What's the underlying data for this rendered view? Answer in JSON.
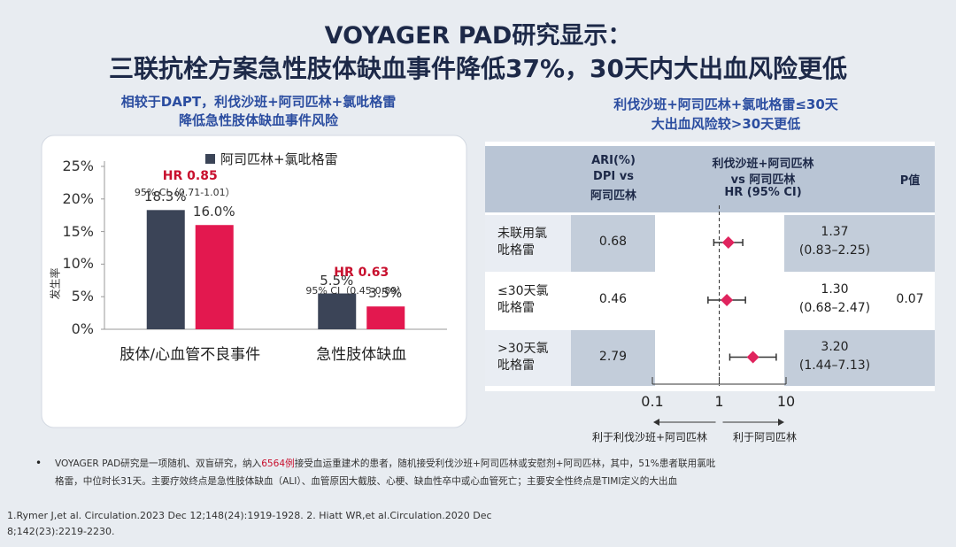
{
  "header": {
    "title_lines": [
      "VOYAGER PAD研究显示：",
      "三联抗栓方案急性肢体缺血事件降低37%，30天内大出血风险更低"
    ]
  },
  "left_subtitle": [
    "相较于DAPT，利伐沙班+阿司匹林+氯吡格雷",
    "降低急性肢体缺血事件风险"
  ],
  "right_subtitle": [
    "利伐沙班+阿司匹林+氯吡格雷≤30天",
    "大出血风险较>30天更低"
  ],
  "chart_data": [
    {
      "type": "bar",
      "ylabel": "发生率",
      "categories": [
        "肢体/心血管不良事件",
        "急性肢体缺血"
      ],
      "series": [
        {
          "name": "阿司匹林+氯吡格雷",
          "color": "#3b4457",
          "values": [
            18.3,
            5.5
          ],
          "value_labels": [
            "18.3%",
            "5.5%"
          ]
        },
        {
          "color": "#e3184f",
          "values": [
            16.0,
            3.5
          ],
          "value_labels": [
            "16.0%",
            "3.5%"
          ]
        }
      ],
      "annotations": [
        {
          "hr": "HR 0.85",
          "ci": "95% CI（0.71-1.01）"
        },
        {
          "hr": "HR 0.63",
          "ci": "95% CI（0.45-0.89）"
        }
      ],
      "ylim": [
        0,
        25
      ],
      "yticks": [
        {
          "value": 0,
          "label": "0%"
        },
        {
          "value": 5,
          "label": "5%"
        },
        {
          "value": 10,
          "label": "10%"
        },
        {
          "value": 15,
          "label": "15%"
        },
        {
          "value": 20,
          "label": "20%"
        },
        {
          "value": 25,
          "label": "25%"
        }
      ]
    },
    {
      "type": "forest",
      "column_headers": [
        [
          "ARI(%)",
          "DPI vs",
          "阿司匹林"
        ],
        [
          "利伐沙班+阿司匹林",
          "vs 阿司匹林",
          "HR (95% CI)"
        ],
        [
          "P值"
        ]
      ],
      "categories": [
        "未联用氯吡格雷",
        "≤30天氯吡格雷",
        ">30天氯吡格雷"
      ],
      "ari": [
        0.68,
        0.46,
        2.79
      ],
      "values": [
        1.37,
        1.3,
        3.2
      ],
      "value_labels": [
        "1.37",
        "1.30",
        "3.20"
      ],
      "ci_low": [
        0.83,
        0.68,
        1.44
      ],
      "ci_high": [
        2.25,
        2.47,
        7.13
      ],
      "ci_labels": [
        "(0.83–2.25)",
        "(0.68–2.47)",
        "(1.44–7.13)"
      ],
      "p_value": 0.07,
      "color": "#e0245e",
      "log_scale": true,
      "xlim": [
        0.1,
        10
      ],
      "xticks": [
        0.1,
        1,
        10
      ],
      "reference_line": 1,
      "favors": [
        "利于利伐沙班+阿司匹林",
        "利于阿司匹林"
      ]
    }
  ],
  "footnote": [
    [
      "VOYAGER PAD研究是一项随机、双盲研究，纳入",
      "6564例",
      "接受血运重建术的患者，随机接受利伐沙班+阿司匹林或安慰剂+阿司匹林，其中，51%患者联用氯吡"
    ],
    [
      "格雷，中位时长31天。主要疗效终点是急性肢体缺血（ALI）、血管原因大截肢、心梗、缺血性卒中或心血管死亡；主要安全性终点是TIMI定义的大出血"
    ]
  ],
  "references": [
    "1.Rymer J,et al. Circulation.2023 Dec 12;148(24):1919-1928. 2. Hiatt WR,et al.Circulation.2020 Dec",
    "8;142(23):2219-2230."
  ]
}
